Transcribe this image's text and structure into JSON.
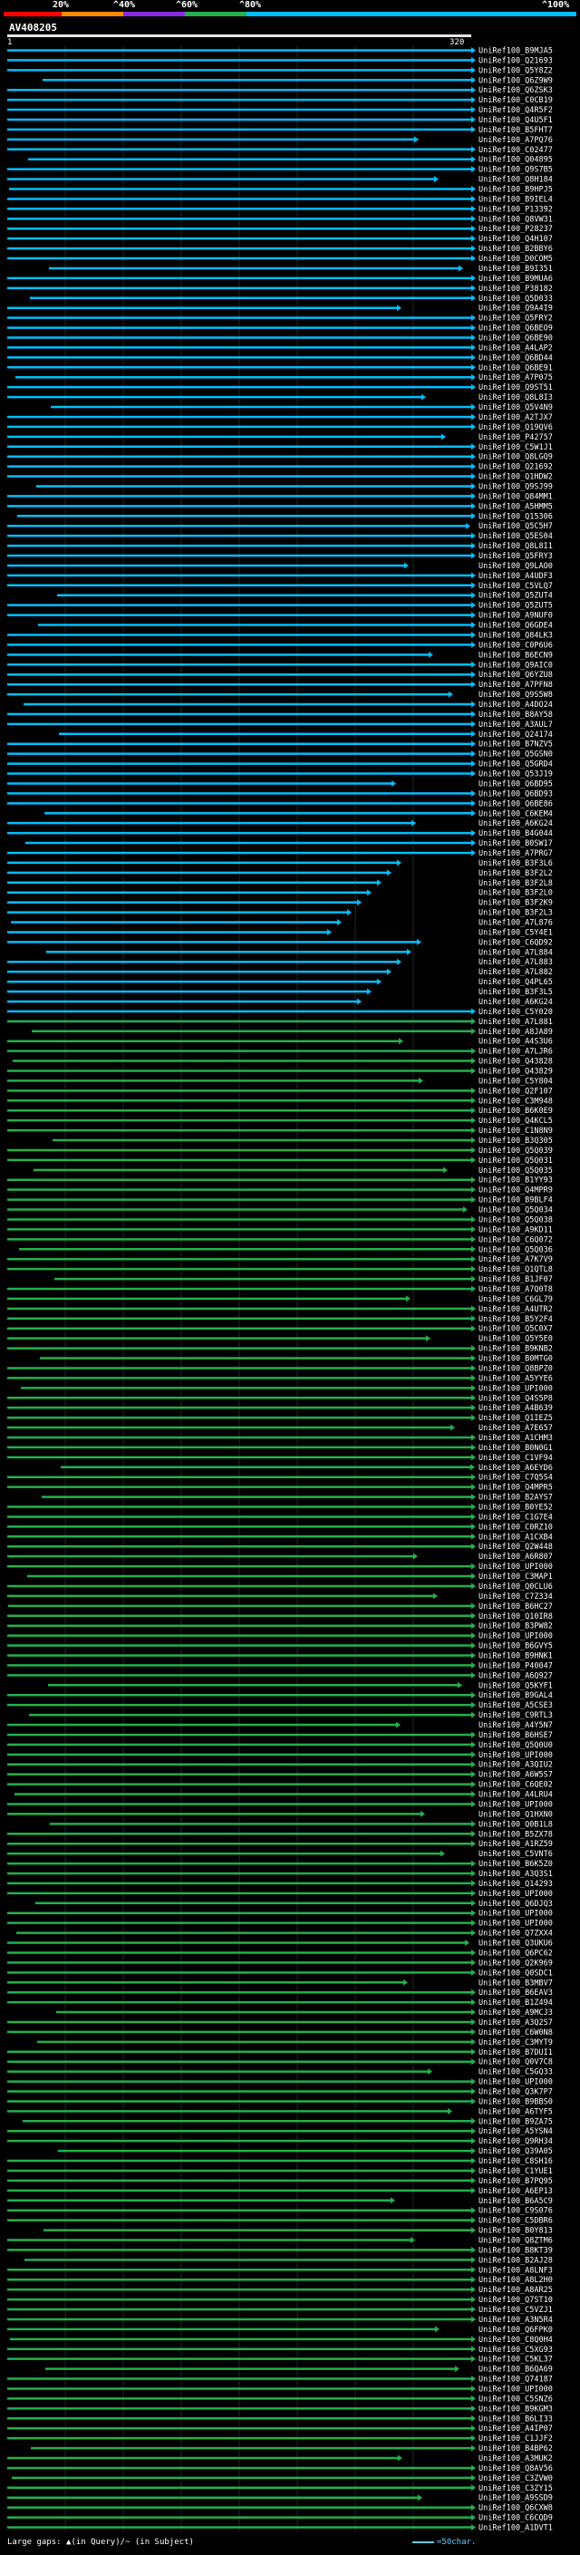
{
  "legend": {
    "labels": [
      "20%",
      "^40%",
      "^60%",
      "^80%",
      "^100%"
    ],
    "colors": [
      "#ff0000",
      "#ff8c00",
      "#8a2be2",
      "#22b14c",
      "#00bfff"
    ]
  },
  "query": {
    "id": "AV408205",
    "start": "1",
    "end": "320"
  },
  "footer": {
    "large_gaps": "Large gaps: ▲(in Query)/~ (in Subject)",
    "scale": "=50char."
  },
  "colors": {
    "cyan": "#00bfff",
    "green": "#22b14c",
    "grid": "#1e2a1e"
  },
  "hit_ids": [
    "UniRef100_B9MJA5",
    "UniRef100_Q21693",
    "UniRef100_Q5Y8Z2",
    "UniRef100_Q6Z9W9",
    "UniRef100_Q6ZSK3",
    "UniRef100_C0CB19",
    "UniRef100_Q4R5F2",
    "UniRef100_Q4U5F1",
    "UniRef100_B5FHT7",
    "UniRef100_A7PQ76",
    "UniRef100_C02477",
    "UniRef100_Q04895",
    "UniRef100_Q9S7B5",
    "UniRef100_Q8H184",
    "UniRef100_B9HPJ5",
    "UniRef100_B9IEL4",
    "UniRef100_P13392",
    "UniRef100_Q8VW31",
    "UniRef100_P28237",
    "UniRef100_Q4H107",
    "UniRef100_B2BBY6",
    "UniRef100_D0COM5",
    "UniRef100_B9I351",
    "UniRef100_B9MUA6",
    "UniRef100_P38182",
    "UniRef100_Q5D033",
    "UniRef100_Q9A4I9",
    "UniRef100_Q5FRY2",
    "UniRef100_Q6BEO9",
    "UniRef100_Q6BE90",
    "UniRef100_A4LAP2",
    "UniRef100_Q6BD44",
    "UniRef100_Q6BE91",
    "UniRef100_A7P075",
    "UniRef100_Q9ST51",
    "UniRef100_Q8L8I3",
    "UniRef100_Q5V4N9",
    "UniRef100_A2TJX7",
    "UniRef100_Q19QV6",
    "UniRef100_P42757",
    "UniRef100_C5W1J1",
    "UniRef100_Q8LGQ9",
    "UniRef100_Q21692",
    "UniRef100_Q1HDW2",
    "UniRef100_Q9SJ99",
    "UniRef100_Q84MM1",
    "UniRef100_A5HMM5",
    "UniRef100_Q15306",
    "UniRef100_Q5C5H7",
    "UniRef100_Q5ES04",
    "UniRef100_Q8L8I1",
    "UniRef100_Q5FRY3",
    "UniRef100_Q9LAO0",
    "UniRef100_A4UDF3",
    "UniRef100_C5VLQ7",
    "UniRef100_Q5ZUT4",
    "UniRef100_Q5ZUT5",
    "UniRef100_A9NUF0",
    "UniRef100_Q6GDE4",
    "UniRef100_Q84LK3",
    "UniRef100_C0P6U6",
    "UniRef100_B6ECN9",
    "UniRef100_Q9AIC0",
    "UniRef100_Q6YZU8",
    "UniRef100_A7PFN8",
    "UniRef100_Q9S5W8",
    "UniRef100_A4DO24",
    "UniRef100_B8AY58",
    "UniRef100_A3AUL7",
    "UniRef100_Q24174",
    "UniRef100_B7NZV5",
    "UniRef100_Q5GSN0",
    "UniRef100_Q5GRD4",
    "UniRef100_Q53J19",
    "UniRef100_Q6BD95",
    "UniRef100_Q6BD93",
    "UniRef100_Q6BE86",
    "UniRef100_C6KEM4",
    "UniRef100_A6KG24",
    "UniRef100_B4G044",
    "UniRef100_B0SW17",
    "UniRef100_A7PRG7",
    "UniRef100_B3F3L6",
    "UniRef100_B3F2L2",
    "UniRef100_B3F2L8",
    "UniRef100_B3F2L0",
    "UniRef100_B3F2K9",
    "UniRef100_B3F2L3",
    "UniRef100_A7L876",
    "UniRef100_C5Y4E1",
    "UniRef100_C6QD92",
    "UniRef100_A7L884",
    "UniRef100_A7L883",
    "UniRef100_A7L882",
    "UniRef100_Q4PL65",
    "UniRef100_B3F3L5",
    "UniRef100_A6KG24",
    "UniRef100_C5Y020",
    "UniRef100_A7L881",
    "UniRef100_A8JA89",
    "UniRef100_A4S3U6",
    "UniRef100_A7LJR6",
    "UniRef100_Q43828",
    "UniRef100_Q43829",
    "UniRef100_C5Y804",
    "UniRef100_Q2F107",
    "UniRef100_C3M948",
    "UniRef100_B6K0E9",
    "UniRef100_Q4KCL5",
    "UniRef100_C1N8N9",
    "UniRef100_B3Q305",
    "UniRef100_Q5Q039",
    "UniRef100_Q5Q031",
    "UniRef100_Q5Q035",
    "UniRef100_B1YY93",
    "UniRef100_Q4MPR9",
    "UniRef100_B9BLF4",
    "UniRef100_Q5Q034",
    "UniRef100_Q5Q038",
    "UniRef100_A9KD11",
    "UniRef100_C6Q072",
    "UniRef100_Q5Q036",
    "UniRef100_A7K7V9",
    "UniRef100_Q1QTL8",
    "UniRef100_B1JF07",
    "UniRef100_A7Q0T8",
    "UniRef100_C6GL79",
    "UniRef100_A4UTR2",
    "UniRef100_B5Y2F4",
    "UniRef100_Q5C0X7",
    "UniRef100_Q5Y5E0",
    "UniRef100_B9KNB2",
    "UniRef100_B0MTG0",
    "UniRef100_Q8BPZ0",
    "UniRef100_A5YYE6",
    "UniRef100_UPI000",
    "UniRef100_Q4S5P8",
    "UniRef100_A4B639",
    "UniRef100_Q1IEZ5",
    "UniRef100_A7E657",
    "UniRef100_A1CHM3",
    "UniRef100_B0N0G1",
    "UniRef100_C1VF94",
    "UniRef100_A6EYD6",
    "UniRef100_C7Q5S4",
    "UniRef100_Q4MPR5",
    "UniRef100_B2AYS7",
    "UniRef100_B0YE52",
    "UniRef100_C1G7E4",
    "UniRef100_C0RZ10",
    "UniRef100_A1CXB4",
    "UniRef100_Q2W448",
    "UniRef100_A6R807",
    "UniRef100_UPI000",
    "UniRef100_C3MAP1",
    "UniRef100_Q0CLU6",
    "UniRef100_C7Z334",
    "UniRef100_B6HC27",
    "UniRef100_Q10IR8",
    "UniRef100_B3PW82",
    "UniRef100_UPI000",
    "UniRef100_B6GVY5",
    "UniRef100_B9HNK1",
    "UniRef100_P40047",
    "UniRef100_A6Q927",
    "UniRef100_Q5KYF1",
    "UniRef100_B9GAL4",
    "UniRef100_A5CSE3",
    "UniRef100_C9RTL3",
    "UniRef100_A4Y5N7",
    "UniRef100_B6HSE7",
    "UniRef100_Q5Q0U0",
    "UniRef100_UPI000",
    "UniRef100_A3QIU2",
    "UniRef100_A6W5S7",
    "UniRef100_C6QE02",
    "UniRef100_A4LRU4",
    "UniRef100_UPI000",
    "UniRef100_Q1HXN0",
    "UniRef100_Q0B1L8",
    "UniRef100_B5ZX78",
    "UniRef100_A1RZ59",
    "UniRef100_C5VNT6",
    "UniRef100_B6K5Z0",
    "UniRef100_A3Q3S1",
    "UniRef100_Q14293",
    "UniRef100_UPI000",
    "UniRef100_Q6DJQ3",
    "UniRef100_UPI000",
    "UniRef100_UPI000",
    "UniRef100_Q7ZXX4",
    "UniRef100_Q3UKU6",
    "UniRef100_Q6PC62",
    "UniRef100_Q2K969",
    "UniRef100_Q0SDC1",
    "UniRef100_B3MBV7",
    "UniRef100_B6EAV3",
    "UniRef100_B1Z494",
    "UniRef100_A9MCJ3",
    "UniRef100_A3Q2S7",
    "UniRef100_C6W0N8",
    "UniRef100_C3MYT9",
    "UniRef100_B7DUI1",
    "UniRef100_Q0V7C8",
    "UniRef100_C5GQ33",
    "UniRef100_UPI000",
    "UniRef100_Q3K7P7",
    "UniRef100_B9BBS0",
    "UniRef100_A6TYF5",
    "UniRef100_B9ZA75",
    "UniRef100_A5YSN4",
    "UniRef100_Q9RH34",
    "UniRef100_Q39A05",
    "UniRef100_C8SH16",
    "UniRef100_C1YUE1",
    "UniRef100_B7PQ95",
    "UniRef100_A6EP13",
    "UniRef100_B6A5C9",
    "UniRef100_C9S076",
    "UniRef100_C5DBR6",
    "UniRef100_B0Y813",
    "UniRef100_Q8ZTM6",
    "UniRef100_B8KT39",
    "UniRef100_B2AJ28",
    "UniRef100_A8LNF3",
    "UniRef100_A8L2H0",
    "UniRef100_A8AR25",
    "UniRef100_Q7ST10",
    "UniRef100_C5VZJ1",
    "UniRef100_A3N5R4",
    "UniRef100_Q6FPK0",
    "UniRef100_C8Q0H4",
    "UniRef100_C5XG93",
    "UniRef100_C5KL37",
    "UniRef100_B6QA69",
    "UniRef100_Q74187",
    "UniRef100_UPI000",
    "UniRef100_C5SNZ6",
    "UniRef100_B9KGM3",
    "UniRef100_B6LI33",
    "UniRef100_A4IP07",
    "UniRef100_C1JJF2",
    "UniRef100_B4BP62",
    "UniRef100_A3MUK2",
    "UniRef100_Q8AV56",
    "UniRef100_C3ZVW0",
    "UniRef100_C3ZY15",
    "UniRef100_A9SSD9",
    "UniRef100_Q6CXW8",
    "UniRef100_C6CQD9",
    "UniRef100_A1DVT1"
  ]
}
